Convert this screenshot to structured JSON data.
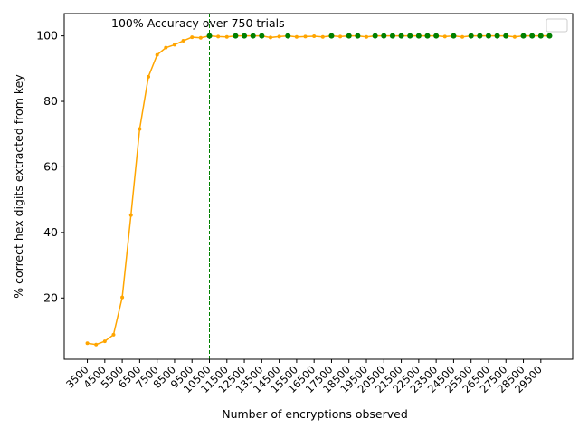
{
  "chart_data": {
    "type": "line",
    "title": "",
    "xlabel": "Number of encryptions observed",
    "ylabel": "% correct hex digits extracted from key",
    "annotation": "100% Accuracy over 750 trials",
    "reference_line_x": 10500,
    "reference_line_color": "#008000",
    "line_color": "#ffa500",
    "perfect_marker_color": "#008000",
    "ylim": [
      1.3,
      106.8
    ],
    "yticks": [
      "20",
      "40",
      "60",
      "80",
      "100"
    ],
    "ytick_values": [
      20,
      40,
      60,
      80,
      100
    ],
    "xticks": [
      "3500",
      "4500",
      "5500",
      "6500",
      "7500",
      "8500",
      "9500",
      "10500",
      "11500",
      "12500",
      "13500",
      "14500",
      "15500",
      "16500",
      "17500",
      "18500",
      "19500",
      "20500",
      "21500",
      "22500",
      "23500",
      "24500",
      "25500",
      "26500",
      "27500",
      "28500",
      "29500"
    ],
    "x": [
      3500,
      4000,
      4500,
      5000,
      5500,
      6000,
      6500,
      7000,
      7500,
      8000,
      8500,
      9000,
      9500,
      10000,
      10500,
      11000,
      11500,
      12000,
      12500,
      13000,
      13500,
      14000,
      14500,
      15000,
      15500,
      16000,
      16500,
      17000,
      17500,
      18000,
      18500,
      19000,
      19500,
      20000,
      20500,
      21000,
      21500,
      22000,
      22500,
      23000,
      23500,
      24000,
      24500,
      25000,
      25500,
      26000,
      26500,
      27000,
      27500,
      28000,
      28500,
      29000,
      29500,
      30000
    ],
    "y": [
      6.2,
      5.8,
      6.8,
      8.8,
      20.2,
      45.3,
      71.6,
      87.5,
      94.2,
      96.4,
      97.3,
      98.5,
      99.6,
      99.4,
      100,
      99.8,
      99.7,
      100,
      100,
      100,
      100,
      99.5,
      99.8,
      100,
      99.7,
      99.8,
      99.9,
      99.7,
      100,
      99.8,
      100,
      100,
      99.7,
      100,
      100,
      100,
      100,
      100,
      100,
      100,
      100,
      99.8,
      100,
      99.7,
      100,
      100,
      100,
      100,
      100,
      99.7,
      100,
      100,
      100,
      100
    ],
    "legend": {
      "location": "top-right",
      "entries": []
    }
  }
}
